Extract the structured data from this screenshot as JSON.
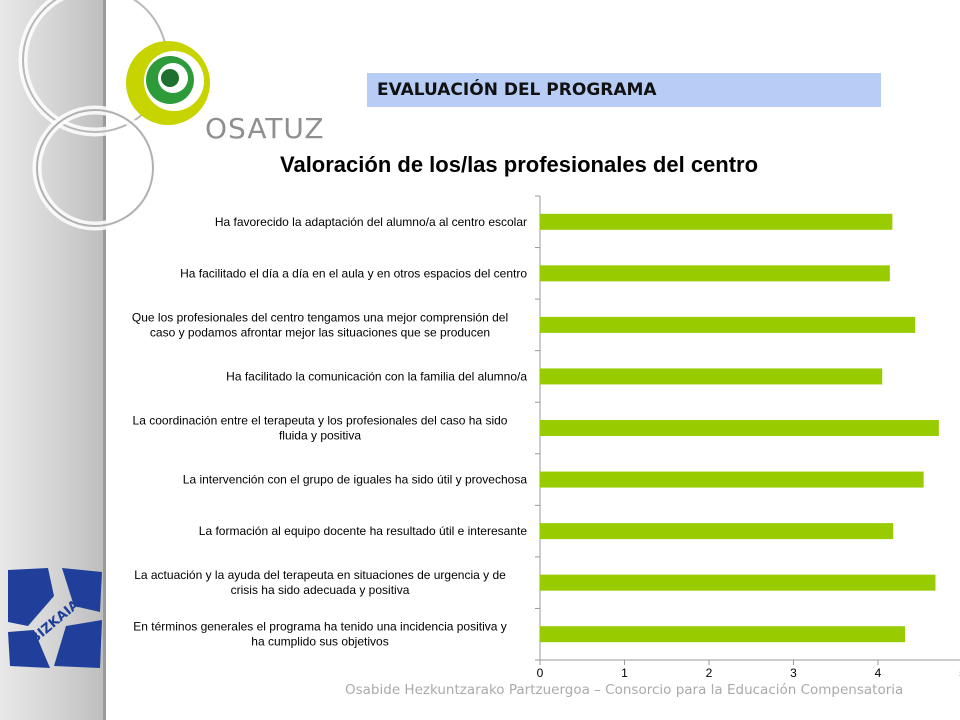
{
  "header": {
    "title": "EVALUACIÓN  DEL PROGRAMA",
    "logo_text": "OSATUZ",
    "partner_logo_text": "BIZKAIA"
  },
  "footer": {
    "text": "Osabide Hezkuntzarako Partzuergoa – Consorcio para la Educación Compensatoria"
  },
  "colors": {
    "bar": "#99cc00",
    "title_box": "#b7cdf6"
  },
  "chart_data": {
    "type": "bar",
    "orientation": "horizontal",
    "title": "Valoración de los/las profesionales del centro",
    "xlim": [
      0,
      5
    ],
    "xticks": [
      "0",
      "1",
      "2",
      "3",
      "4",
      "5"
    ],
    "grid": false,
    "categories": [
      [
        "Ha favorecido la adaptación del alumno/a al centro escolar"
      ],
      [
        "Ha facilitado el día a día en el aula y en otros espacios del centro"
      ],
      [
        "Que los profesionales del centro tengamos una mejor comprensión del",
        "caso y podamos afrontar mejor las situaciones que se producen"
      ],
      [
        "Ha facilitado la comunicación con la familia del alumno/a"
      ],
      [
        "La coordinación entre el terapeuta y los profesionales del caso ha sido",
        "fluida y positiva"
      ],
      [
        "La intervención con el grupo de iguales ha sido útil y provechosa"
      ],
      [
        "La formación al equipo docente ha resultado útil e interesante"
      ],
      [
        "La actuación y la ayuda del terapeuta en situaciones de urgencia y de",
        "crisis ha sido adecuada y positiva"
      ],
      [
        "En términos generales el programa ha tenido una incidencia positiva  y",
        "ha cumplido sus objetivos"
      ]
    ],
    "values": [
      4.17,
      4.14,
      4.44,
      4.05,
      4.72,
      4.54,
      4.18,
      4.68,
      4.32
    ]
  }
}
